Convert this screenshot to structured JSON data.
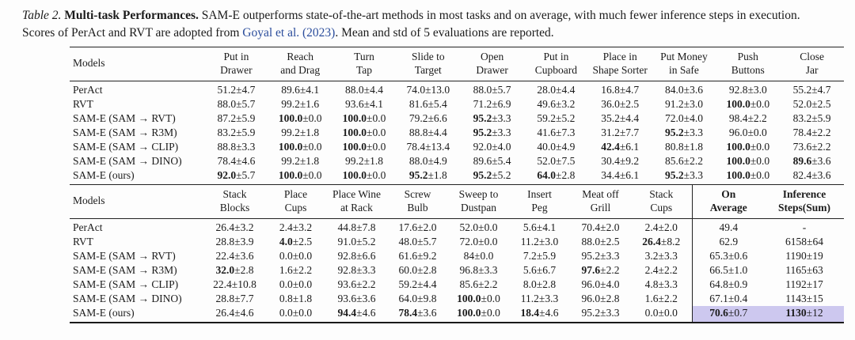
{
  "caption": {
    "label": "Table 2.",
    "title": "Multi-task Performances.",
    "text1": "SAM-E outperforms state-of-the-art methods in most tasks and on average, with much fewer inference steps in execution. Scores of PerAct and RVT are adopted from",
    "link": "Goyal et al. (2023)",
    "text2": ". Mean and std of 5 evaluations are reported."
  },
  "colors": {
    "highlight": "#cdc8ef",
    "link": "#2b4d9c"
  },
  "table1": {
    "models_header": "Models",
    "columns": [
      {
        "lines": [
          "Put in",
          "Drawer"
        ]
      },
      {
        "lines": [
          "Reach",
          "and Drag"
        ]
      },
      {
        "lines": [
          "Turn",
          "Tap"
        ]
      },
      {
        "lines": [
          "Slide to",
          "Target"
        ]
      },
      {
        "lines": [
          "Open",
          "Drawer"
        ]
      },
      {
        "lines": [
          "Put in",
          "Cupboard"
        ]
      },
      {
        "lines": [
          "Place in",
          "Shape Sorter"
        ]
      },
      {
        "lines": [
          "Put Money",
          "in Safe"
        ]
      },
      {
        "lines": [
          "Push",
          "Buttons"
        ]
      },
      {
        "lines": [
          "Close",
          "Jar"
        ]
      }
    ],
    "rows": [
      {
        "model": "PerAct",
        "cells": [
          {
            "m": "51.2",
            "s": "4.7"
          },
          {
            "m": "89.6",
            "s": "4.1"
          },
          {
            "m": "88.0",
            "s": "4.4"
          },
          {
            "m": "74.0",
            "s": "13.0"
          },
          {
            "m": "88.0",
            "s": "5.7"
          },
          {
            "m": "28.0",
            "s": "4.4"
          },
          {
            "m": "16.8",
            "s": "4.7"
          },
          {
            "m": "84.0",
            "s": "3.6"
          },
          {
            "m": "92.8",
            "s": "3.0"
          },
          {
            "m": "55.2",
            "s": "4.7"
          }
        ]
      },
      {
        "model": "RVT",
        "cells": [
          {
            "m": "88.0",
            "s": "5.7"
          },
          {
            "m": "99.2",
            "s": "1.6"
          },
          {
            "m": "93.6",
            "s": "4.1"
          },
          {
            "m": "81.6",
            "s": "5.4"
          },
          {
            "m": "71.2",
            "s": "6.9"
          },
          {
            "m": "49.6",
            "s": "3.2"
          },
          {
            "m": "36.0",
            "s": "2.5"
          },
          {
            "m": "91.2",
            "s": "3.0"
          },
          {
            "m": "100.0",
            "s": "0.0",
            "b": true
          },
          {
            "m": "52.0",
            "s": "2.5"
          }
        ]
      },
      {
        "model": "SAM-E (SAM → RVT)",
        "cells": [
          {
            "m": "87.2",
            "s": "5.9"
          },
          {
            "m": "100.0",
            "s": "0.0",
            "b": true
          },
          {
            "m": "100.0",
            "s": "0.0",
            "b": true
          },
          {
            "m": "79.2",
            "s": "6.6"
          },
          {
            "m": "95.2",
            "s": "3.3",
            "b": true
          },
          {
            "m": "59.2",
            "s": "5.2"
          },
          {
            "m": "35.2",
            "s": "4.4"
          },
          {
            "m": "72.0",
            "s": "4.0"
          },
          {
            "m": "98.4",
            "s": "2.2"
          },
          {
            "m": "83.2",
            "s": "5.9"
          }
        ]
      },
      {
        "model": "SAM-E (SAM → R3M)",
        "cells": [
          {
            "m": "83.2",
            "s": "5.9"
          },
          {
            "m": "99.2",
            "s": "1.8"
          },
          {
            "m": "100.0",
            "s": "0.0",
            "b": true
          },
          {
            "m": "88.8",
            "s": "4.4"
          },
          {
            "m": "95.2",
            "s": "3.3",
            "b": true
          },
          {
            "m": "41.6",
            "s": "7.3"
          },
          {
            "m": "31.2",
            "s": "7.7"
          },
          {
            "m": "95.2",
            "s": "3.3",
            "b": true
          },
          {
            "m": "96.0",
            "s": "0.0"
          },
          {
            "m": "78.4",
            "s": "2.2"
          }
        ]
      },
      {
        "model": "SAM-E (SAM → CLIP)",
        "cells": [
          {
            "m": "88.8",
            "s": "3.3"
          },
          {
            "m": "100.0",
            "s": "0.0",
            "b": true
          },
          {
            "m": "100.0",
            "s": "0.0",
            "b": true
          },
          {
            "m": "78.4",
            "s": "13.4"
          },
          {
            "m": "92.0",
            "s": "4.0"
          },
          {
            "m": "40.0",
            "s": "4.9"
          },
          {
            "m": "42.4",
            "s": "6.1",
            "b": true
          },
          {
            "m": "80.8",
            "s": "1.8"
          },
          {
            "m": "100.0",
            "s": "0.0",
            "b": true
          },
          {
            "m": "73.6",
            "s": "2.2"
          }
        ]
      },
      {
        "model": "SAM-E (SAM → DINO)",
        "cells": [
          {
            "m": "78.4",
            "s": "4.6"
          },
          {
            "m": "99.2",
            "s": "1.8"
          },
          {
            "m": "99.2",
            "s": "1.8"
          },
          {
            "m": "88.0",
            "s": "4.9"
          },
          {
            "m": "89.6",
            "s": "5.4"
          },
          {
            "m": "52.0",
            "s": "7.5"
          },
          {
            "m": "30.4",
            "s": "9.2"
          },
          {
            "m": "85.6",
            "s": "2.2"
          },
          {
            "m": "100.0",
            "s": "0.0",
            "b": true
          },
          {
            "m": "89.6",
            "s": "3.6",
            "b": true
          }
        ]
      },
      {
        "model": "SAM-E (ours)",
        "cells": [
          {
            "m": "92.0",
            "s": "5.7",
            "b": true
          },
          {
            "m": "100.0",
            "s": "0.0",
            "b": true
          },
          {
            "m": "100.0",
            "s": "0.0",
            "b": true
          },
          {
            "m": "95.2",
            "s": "1.8",
            "b": true
          },
          {
            "m": "95.2",
            "s": "5.2",
            "b": true
          },
          {
            "m": "64.0",
            "s": "2.8",
            "b": true
          },
          {
            "m": "34.4",
            "s": "6.1"
          },
          {
            "m": "95.2",
            "s": "3.3",
            "b": true
          },
          {
            "m": "100.0",
            "s": "0.0",
            "b": true
          },
          {
            "m": "82.4",
            "s": "3.6"
          }
        ]
      }
    ]
  },
  "table2": {
    "models_header": "Models",
    "columns": [
      {
        "lines": [
          "Stack",
          "Blocks"
        ]
      },
      {
        "lines": [
          "Place",
          "Cups"
        ]
      },
      {
        "lines": [
          "Place Wine",
          "at Rack"
        ]
      },
      {
        "lines": [
          "Screw",
          "Bulb"
        ]
      },
      {
        "lines": [
          "Sweep to",
          "Dustpan"
        ]
      },
      {
        "lines": [
          "Insert",
          "Peg"
        ]
      },
      {
        "lines": [
          "Meat off",
          "Grill"
        ]
      },
      {
        "lines": [
          "Stack",
          "Cups"
        ]
      },
      {
        "lines": [
          "On",
          "Average"
        ],
        "bold": true,
        "vline": true
      },
      {
        "lines": [
          "Inference",
          "Steps(Sum)"
        ],
        "bold": true
      }
    ],
    "rows": [
      {
        "model": "PerAct",
        "cells": [
          {
            "m": "26.4",
            "s": "3.2"
          },
          {
            "m": "2.4",
            "s": "3.2"
          },
          {
            "m": "44.8",
            "s": "7.8"
          },
          {
            "m": "17.6",
            "s": "2.0"
          },
          {
            "m": "52.0",
            "s": "0.0"
          },
          {
            "m": "5.6",
            "s": "4.1"
          },
          {
            "m": "70.4",
            "s": "2.0"
          },
          {
            "m": "2.4",
            "s": "2.0"
          },
          {
            "m": "49.4"
          },
          {
            "m": "-"
          }
        ]
      },
      {
        "model": "RVT",
        "cells": [
          {
            "m": "28.8",
            "s": "3.9"
          },
          {
            "m": "4.0",
            "s": "2.5",
            "b": true
          },
          {
            "m": "91.0",
            "s": "5.2"
          },
          {
            "m": "48.0",
            "s": "5.7"
          },
          {
            "m": "72.0",
            "s": "0.0"
          },
          {
            "m": "11.2",
            "s": "3.0"
          },
          {
            "m": "88.0",
            "s": "2.5"
          },
          {
            "m": "26.4",
            "s": "8.2",
            "b": true
          },
          {
            "m": "62.9"
          },
          {
            "m": "6158",
            "s": "64"
          }
        ]
      },
      {
        "model": "SAM-E (SAM → RVT)",
        "cells": [
          {
            "m": "22.4",
            "s": "3.6"
          },
          {
            "m": "0.0",
            "s": "0.0"
          },
          {
            "m": "92.8",
            "s": "6.6"
          },
          {
            "m": "61.6",
            "s": "9.2"
          },
          {
            "m": "84",
            "s": "0.0"
          },
          {
            "m": "7.2",
            "s": "5.9"
          },
          {
            "m": "95.2",
            "s": "3.3"
          },
          {
            "m": "3.2",
            "s": "3.3"
          },
          {
            "m": "65.3",
            "s": "0.6"
          },
          {
            "m": "1190",
            "s": "19"
          }
        ]
      },
      {
        "model": "SAM-E (SAM → R3M)",
        "cells": [
          {
            "m": "32.0",
            "s": "2.8",
            "b": true
          },
          {
            "m": "1.6",
            "s": "2.2"
          },
          {
            "m": "92.8",
            "s": "3.3"
          },
          {
            "m": "60.0",
            "s": "2.8"
          },
          {
            "m": "96.8",
            "s": "3.3"
          },
          {
            "m": "5.6",
            "s": "6.7"
          },
          {
            "m": "97.6",
            "s": "2.2",
            "b": true
          },
          {
            "m": "2.4",
            "s": "2.2"
          },
          {
            "m": "66.5",
            "s": "1.0"
          },
          {
            "m": "1165",
            "s": "63"
          }
        ]
      },
      {
        "model": "SAM-E (SAM → CLIP)",
        "cells": [
          {
            "m": "22.4",
            "s": "10.8"
          },
          {
            "m": "0.0",
            "s": "0.0"
          },
          {
            "m": "93.6",
            "s": "2.2"
          },
          {
            "m": "59.2",
            "s": "4.4"
          },
          {
            "m": "85.6",
            "s": "2.2"
          },
          {
            "m": "8.0",
            "s": "2.8"
          },
          {
            "m": "96.0",
            "s": "4.0"
          },
          {
            "m": "4.8",
            "s": "3.3"
          },
          {
            "m": "64.8",
            "s": "0.9"
          },
          {
            "m": "1192",
            "s": "17"
          }
        ]
      },
      {
        "model": "SAM-E (SAM → DINO)",
        "cells": [
          {
            "m": "28.8",
            "s": "7.7"
          },
          {
            "m": "0.8",
            "s": "1.8"
          },
          {
            "m": "93.6",
            "s": "3.6"
          },
          {
            "m": "64.0",
            "s": "9.8"
          },
          {
            "m": "100.0",
            "s": "0.0",
            "b": true
          },
          {
            "m": "11.2",
            "s": "3.3"
          },
          {
            "m": "96.0",
            "s": "2.8"
          },
          {
            "m": "1.6",
            "s": "2.2"
          },
          {
            "m": "67.1",
            "s": "0.4"
          },
          {
            "m": "1143",
            "s": "15"
          }
        ]
      },
      {
        "model": "SAM-E (ours)",
        "cells": [
          {
            "m": "26.4",
            "s": "4.6"
          },
          {
            "m": "0.0",
            "s": "0.0"
          },
          {
            "m": "94.4",
            "s": "4.6",
            "b": true
          },
          {
            "m": "78.4",
            "s": "3.6",
            "b": true
          },
          {
            "m": "100.0",
            "s": "0.0",
            "b": true
          },
          {
            "m": "18.4",
            "s": "4.6",
            "b": true
          },
          {
            "m": "95.2",
            "s": "3.3"
          },
          {
            "m": "0.0",
            "s": "0.0"
          },
          {
            "m": "70.6",
            "s": "0.7",
            "b": true,
            "hl": true
          },
          {
            "m": "1130",
            "s": "12",
            "b": true,
            "hl": true
          }
        ]
      }
    ]
  }
}
